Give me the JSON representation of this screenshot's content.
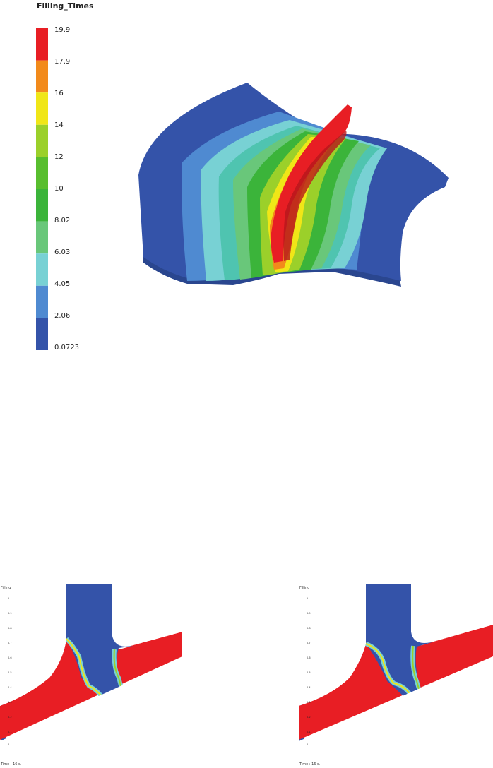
{
  "main_legend": {
    "title": "Filling_Times",
    "labels": [
      "19.9",
      "17.9",
      "16",
      "14",
      "12",
      "10",
      "8.02",
      "6.03",
      "4.05",
      "2.06",
      "0.0723"
    ],
    "colors": [
      "#e81e24",
      "#f28a1b",
      "#f0e617",
      "#9bd02a",
      "#58be2e",
      "#3bb43a",
      "#69c77a",
      "#78d1d4",
      "#4f8ad1",
      "#3453a9"
    ]
  },
  "panels": [
    {
      "title": "Filling",
      "labels": [
        "1",
        "0.9",
        "0.8",
        "0.7",
        "0.6",
        "0.5",
        "0.4",
        "0.3",
        "0.2",
        "0.1",
        "0"
      ],
      "time": "Time : 16 s."
    },
    {
      "title": "Filling",
      "labels": [
        "1",
        "0.9",
        "0.8",
        "0.7",
        "0.6",
        "0.5",
        "0.4",
        "0.3",
        "0.2",
        "0.1",
        "0"
      ],
      "time": "Time : 16 s."
    }
  ],
  "colors": {
    "red": "#e81e24",
    "orange": "#f28a1b",
    "yellow": "#f0e617",
    "lime": "#9bd02a",
    "green": "#3bb43a",
    "lightgreen": "#69c77a",
    "cyan": "#78d1d4",
    "blue": "#4f8ad1",
    "darkblue": "#3453a9"
  }
}
